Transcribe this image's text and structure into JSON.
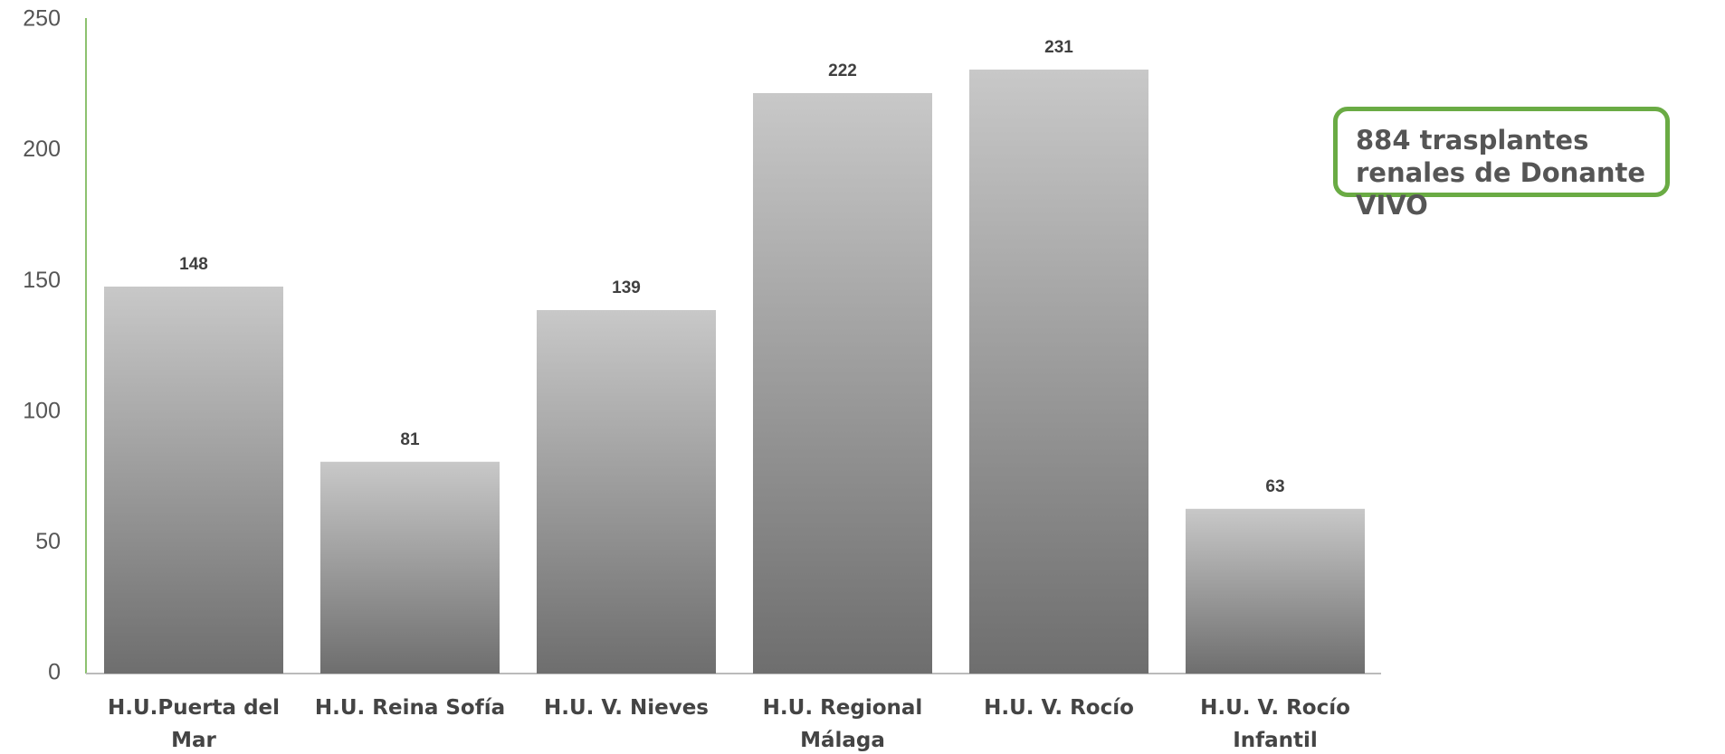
{
  "chart_data": {
    "type": "bar",
    "categories": [
      "H.U.Puerta del Mar",
      "H.U. Reina Sofía",
      "H.U. V. Nieves",
      "H.U. Regional Málaga",
      "H.U. V. Rocío",
      "H.U. V. Rocío Infantil"
    ],
    "values": [
      148,
      81,
      139,
      222,
      231,
      63
    ],
    "color": [
      "#c8c8c8",
      "#6e6e6e"
    ],
    "ylim": [
      0,
      250
    ],
    "yticks": [
      0,
      50,
      100,
      150,
      200,
      250
    ],
    "grid": false,
    "annotation": "884 trasplantes renales de Donante VIVO"
  }
}
